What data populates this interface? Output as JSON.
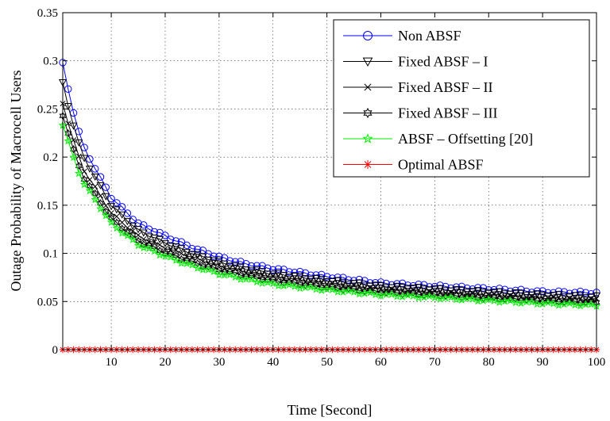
{
  "chart_data": {
    "type": "line",
    "title": "",
    "xlabel": "Time [Second]",
    "ylabel": "Outage Probability of Macrocell Users",
    "xlim": [
      1,
      100
    ],
    "ylim": [
      0,
      0.35
    ],
    "xticks": [
      10,
      20,
      30,
      40,
      50,
      60,
      70,
      80,
      90,
      100
    ],
    "yticks": [
      0,
      0.05,
      0.1,
      0.15,
      0.2,
      0.25,
      0.3,
      0.35
    ],
    "grid": true,
    "legend_position": "top-right",
    "series": [
      {
        "name": "Non ABSF",
        "color": "#0000ff",
        "marker": "circle",
        "key_points": [
          [
            1,
            0.297
          ],
          [
            2,
            0.271
          ],
          [
            3,
            0.247
          ],
          [
            4,
            0.226
          ],
          [
            5,
            0.209
          ],
          [
            10,
            0.158
          ],
          [
            15,
            0.131
          ],
          [
            20,
            0.118
          ],
          [
            25,
            0.106
          ],
          [
            30,
            0.096
          ],
          [
            35,
            0.089
          ],
          [
            40,
            0.084
          ],
          [
            50,
            0.076
          ],
          [
            60,
            0.069
          ],
          [
            70,
            0.066
          ],
          [
            80,
            0.063
          ],
          [
            90,
            0.06
          ],
          [
            100,
            0.059
          ]
        ]
      },
      {
        "name": "Fixed ABSF – I",
        "color": "#000000",
        "marker": "triangle-down",
        "key_points": [
          [
            1,
            0.277
          ],
          [
            2,
            0.254
          ],
          [
            3,
            0.233
          ],
          [
            4,
            0.214
          ],
          [
            5,
            0.199
          ],
          [
            10,
            0.15
          ],
          [
            15,
            0.124
          ],
          [
            20,
            0.111
          ],
          [
            25,
            0.1
          ],
          [
            30,
            0.091
          ],
          [
            35,
            0.084
          ],
          [
            40,
            0.079
          ],
          [
            50,
            0.072
          ],
          [
            60,
            0.066
          ],
          [
            70,
            0.063
          ],
          [
            80,
            0.06
          ],
          [
            90,
            0.057
          ],
          [
            100,
            0.055
          ]
        ]
      },
      {
        "name": "Fixed ABSF – II",
        "color": "#000000",
        "marker": "x",
        "key_points": [
          [
            1,
            0.256
          ],
          [
            2,
            0.236
          ],
          [
            3,
            0.217
          ],
          [
            4,
            0.2
          ],
          [
            5,
            0.186
          ],
          [
            10,
            0.142
          ],
          [
            15,
            0.118
          ],
          [
            20,
            0.106
          ],
          [
            25,
            0.096
          ],
          [
            30,
            0.087
          ],
          [
            35,
            0.081
          ],
          [
            40,
            0.076
          ],
          [
            50,
            0.069
          ],
          [
            60,
            0.063
          ],
          [
            70,
            0.06
          ],
          [
            80,
            0.057
          ],
          [
            90,
            0.054
          ],
          [
            100,
            0.052
          ]
        ]
      },
      {
        "name": "Fixed ABSF – III",
        "color": "#000000",
        "marker": "hexagram",
        "key_points": [
          [
            1,
            0.244
          ],
          [
            2,
            0.225
          ],
          [
            3,
            0.207
          ],
          [
            4,
            0.191
          ],
          [
            5,
            0.178
          ],
          [
            10,
            0.136
          ],
          [
            15,
            0.113
          ],
          [
            20,
            0.101
          ],
          [
            25,
            0.091
          ],
          [
            30,
            0.083
          ],
          [
            35,
            0.077
          ],
          [
            40,
            0.072
          ],
          [
            50,
            0.065
          ],
          [
            60,
            0.06
          ],
          [
            70,
            0.057
          ],
          [
            80,
            0.054
          ],
          [
            90,
            0.051
          ],
          [
            100,
            0.049
          ]
        ]
      },
      {
        "name": "ABSF – Offsetting [20]",
        "color": "#00ee00",
        "marker": "pentagram",
        "key_points": [
          [
            1,
            0.234
          ],
          [
            2,
            0.216
          ],
          [
            3,
            0.199
          ],
          [
            4,
            0.184
          ],
          [
            5,
            0.172
          ],
          [
            10,
            0.131
          ],
          [
            15,
            0.109
          ],
          [
            20,
            0.097
          ],
          [
            25,
            0.087
          ],
          [
            30,
            0.079
          ],
          [
            35,
            0.073
          ],
          [
            40,
            0.068
          ],
          [
            50,
            0.062
          ],
          [
            60,
            0.057
          ],
          [
            70,
            0.054
          ],
          [
            80,
            0.051
          ],
          [
            90,
            0.048
          ],
          [
            100,
            0.046
          ]
        ]
      },
      {
        "name": "Optimal ABSF",
        "color": "#ff0000",
        "marker": "asterisk",
        "key_points": [
          [
            1,
            0.0
          ],
          [
            100,
            0.0
          ]
        ]
      }
    ]
  }
}
